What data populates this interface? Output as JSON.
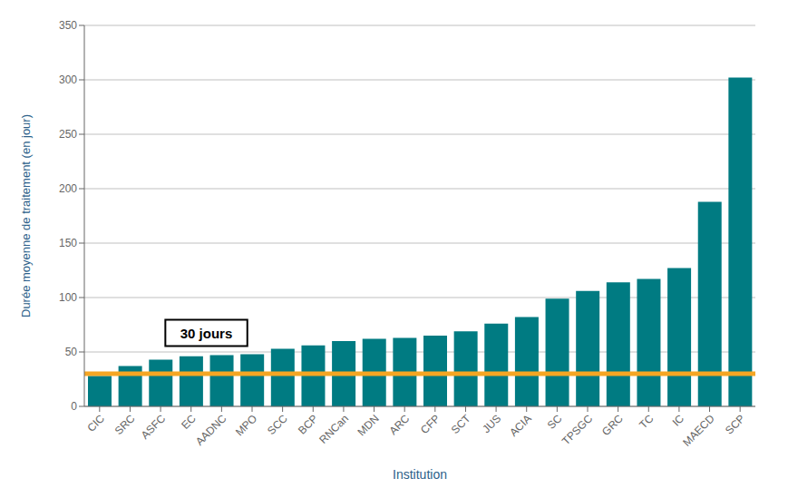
{
  "chart_data": {
    "type": "bar",
    "categories": [
      "CIC",
      "SRC",
      "ASFC",
      "EC",
      "AADNC",
      "MPO",
      "SCC",
      "BCP",
      "RNCan",
      "MDN",
      "ARC",
      "CFP",
      "SCT",
      "JUS",
      "ACIA",
      "SC",
      "TPSGC",
      "GRC",
      "TC",
      "IC",
      "MAECD",
      "SCP"
    ],
    "values": [
      28,
      37,
      43,
      46,
      47,
      48,
      53,
      56,
      60,
      62,
      63,
      65,
      69,
      76,
      82,
      99,
      106,
      114,
      117,
      127,
      188,
      302
    ],
    "color": "#007B82",
    "reference_line": {
      "value": 30,
      "color": "#F5A623"
    },
    "annotation": "30 jours",
    "xlabel": "Institution",
    "ylabel": "Durée moyenne de traitement (en jour)",
    "ylim": [
      0,
      350
    ],
    "yticks": [
      0,
      50,
      100,
      150,
      200,
      250,
      300,
      350
    ],
    "grid": true
  }
}
